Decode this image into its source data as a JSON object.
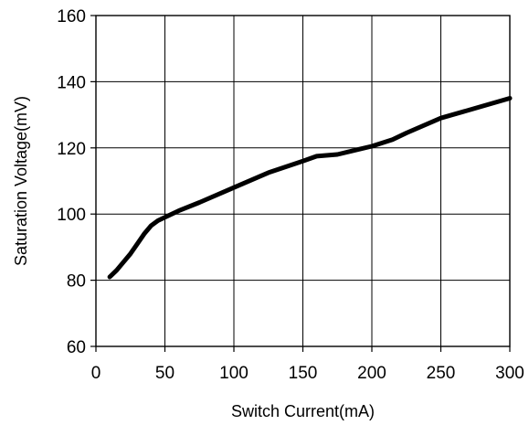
{
  "chart_data": {
    "type": "line",
    "title": "",
    "xlabel": "Switch Current(mA)",
    "ylabel": "Saturation Voltage(mV)",
    "xlim": [
      0,
      300
    ],
    "ylim": [
      60,
      160
    ],
    "x_ticks": [
      0,
      50,
      100,
      150,
      200,
      250,
      300
    ],
    "y_ticks": [
      60,
      80,
      100,
      120,
      140,
      160
    ],
    "x_tick_labels": [
      "0",
      "50",
      "100",
      "150",
      "200",
      "250",
      "300"
    ],
    "y_tick_labels": [
      "60",
      "80",
      "100",
      "120",
      "140",
      "160"
    ],
    "grid": true,
    "legend": "none",
    "series": [
      {
        "color": "#000000",
        "x": [
          10,
          15,
          20,
          25,
          30,
          35,
          40,
          45,
          50,
          60,
          75,
          100,
          125,
          150,
          160,
          175,
          190,
          200,
          215,
          225,
          250,
          275,
          300
        ],
        "y": [
          81,
          83,
          85.5,
          88,
          91,
          94,
          96.5,
          98,
          99,
          101,
          103.5,
          108,
          112.5,
          116,
          117.5,
          118,
          119.5,
          120.5,
          122.5,
          124.5,
          129,
          132,
          135
        ]
      }
    ]
  }
}
